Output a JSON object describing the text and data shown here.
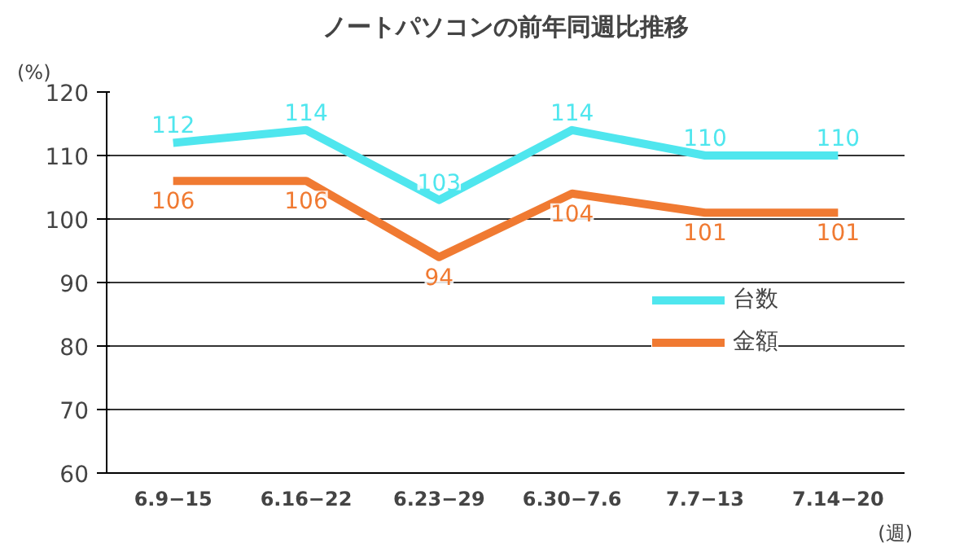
{
  "chart_data": {
    "type": "line",
    "title": "ノートパソコンの前年同週比推移",
    "ylabel": "(%)",
    "xlabel": "(週)",
    "categories": [
      "6.9−15",
      "6.16−22",
      "6.23−29",
      "6.30−7.6",
      "7.7−13",
      "7.14−20"
    ],
    "series": [
      {
        "name": "台数",
        "color": "#4fe6ee",
        "values": [
          112,
          114,
          103,
          114,
          110,
          110
        ]
      },
      {
        "name": "金額",
        "color": "#f07a32",
        "values": [
          106,
          106,
          94,
          104,
          101,
          101
        ]
      }
    ],
    "ylim": [
      60,
      120
    ],
    "yticks": [
      60,
      70,
      80,
      90,
      100,
      110,
      120
    ],
    "grid": "y",
    "legend": "right",
    "data_labels": true,
    "marker": "none",
    "line_style": "solid"
  }
}
